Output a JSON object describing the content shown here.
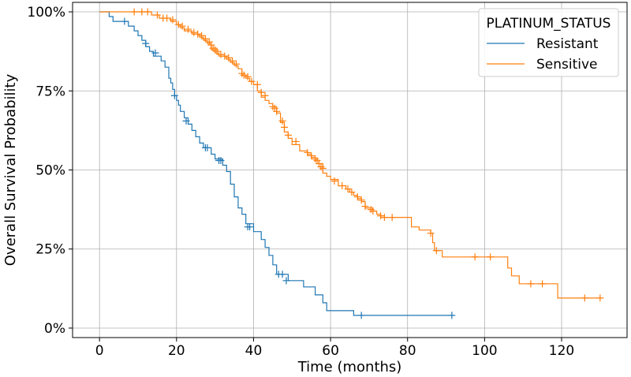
{
  "chart_data": {
    "type": "line",
    "subtype": "kaplan-meier survival curve",
    "title": "",
    "xlabel": "Time (months)",
    "ylabel": "Overall Survival Probability",
    "xlim": [
      -7,
      137
    ],
    "ylim": [
      -0.03,
      1.03
    ],
    "x_ticks": [
      0,
      20,
      40,
      60,
      80,
      100,
      120
    ],
    "x_tick_labels": [
      "0",
      "20",
      "40",
      "60",
      "80",
      "100",
      "120"
    ],
    "y_ticks": [
      0,
      0.25,
      0.5,
      0.75,
      1.0
    ],
    "y_tick_labels": [
      "0%",
      "25%",
      "50%",
      "75%",
      "100%"
    ],
    "grid": true,
    "legend": {
      "title": "PLATINUM_STATUS",
      "placement": "top-right"
    },
    "series": [
      {
        "name": "Resistant",
        "color": "#1f77b4",
        "steps": [
          [
            0,
            1.0
          ],
          [
            2.5,
            0.985
          ],
          [
            3.5,
            0.97
          ],
          [
            7.5,
            0.955
          ],
          [
            9,
            0.94
          ],
          [
            10,
            0.925
          ],
          [
            11,
            0.91
          ],
          [
            12,
            0.89
          ],
          [
            13,
            0.875
          ],
          [
            14,
            0.86
          ],
          [
            16,
            0.845
          ],
          [
            17,
            0.825
          ],
          [
            18,
            0.79
          ],
          [
            18.5,
            0.775
          ],
          [
            19,
            0.755
          ],
          [
            19.5,
            0.735
          ],
          [
            20,
            0.72
          ],
          [
            20.5,
            0.705
          ],
          [
            21,
            0.685
          ],
          [
            22,
            0.665
          ],
          [
            23,
            0.645
          ],
          [
            24,
            0.625
          ],
          [
            25,
            0.605
          ],
          [
            26,
            0.585
          ],
          [
            27,
            0.57
          ],
          [
            29,
            0.55
          ],
          [
            30,
            0.535
          ],
          [
            32,
            0.515
          ],
          [
            33,
            0.495
          ],
          [
            34,
            0.455
          ],
          [
            35,
            0.415
          ],
          [
            36,
            0.38
          ],
          [
            37,
            0.36
          ],
          [
            38,
            0.33
          ],
          [
            40,
            0.305
          ],
          [
            42,
            0.28
          ],
          [
            43,
            0.255
          ],
          [
            44,
            0.23
          ],
          [
            45,
            0.2
          ],
          [
            46,
            0.17
          ],
          [
            49,
            0.15
          ],
          [
            53,
            0.13
          ],
          [
            56,
            0.105
          ],
          [
            58,
            0.08
          ],
          [
            59,
            0.055
          ],
          [
            66,
            0.04
          ],
          [
            92,
            0.04
          ]
        ],
        "censored": [
          [
            6.5,
            0.97
          ],
          [
            12,
            0.9
          ],
          [
            14.5,
            0.87
          ],
          [
            19.5,
            0.735
          ],
          [
            22.5,
            0.655
          ],
          [
            27.5,
            0.57
          ],
          [
            28,
            0.57
          ],
          [
            31,
            0.53
          ],
          [
            31.5,
            0.53
          ],
          [
            38.5,
            0.32
          ],
          [
            39,
            0.32
          ],
          [
            46.5,
            0.17
          ],
          [
            47.5,
            0.17
          ],
          [
            48.5,
            0.15
          ],
          [
            68,
            0.04
          ],
          [
            91.5,
            0.04
          ]
        ]
      },
      {
        "name": "Sensitive",
        "color": "#ff7f0e",
        "steps": [
          [
            0,
            1.0
          ],
          [
            13.5,
            0.99
          ],
          [
            15.5,
            0.98
          ],
          [
            18.5,
            0.97
          ],
          [
            20,
            0.96
          ],
          [
            21,
            0.95
          ],
          [
            22,
            0.94
          ],
          [
            24,
            0.93
          ],
          [
            26,
            0.92
          ],
          [
            27,
            0.91
          ],
          [
            28,
            0.9
          ],
          [
            29,
            0.88
          ],
          [
            30,
            0.87
          ],
          [
            31,
            0.86
          ],
          [
            33,
            0.85
          ],
          [
            34,
            0.84
          ],
          [
            35,
            0.83
          ],
          [
            36,
            0.82
          ],
          [
            37,
            0.8
          ],
          [
            38,
            0.79
          ],
          [
            39,
            0.78
          ],
          [
            40,
            0.77
          ],
          [
            41,
            0.75
          ],
          [
            42,
            0.73
          ],
          [
            43,
            0.72
          ],
          [
            44,
            0.71
          ],
          [
            45,
            0.7
          ],
          [
            46,
            0.68
          ],
          [
            47,
            0.65
          ],
          [
            48,
            0.62
          ],
          [
            49,
            0.6
          ],
          [
            50,
            0.58
          ],
          [
            52,
            0.56
          ],
          [
            54,
            0.55
          ],
          [
            55,
            0.54
          ],
          [
            56,
            0.53
          ],
          [
            57,
            0.52
          ],
          [
            58,
            0.49
          ],
          [
            59,
            0.48
          ],
          [
            60,
            0.47
          ],
          [
            62,
            0.45
          ],
          [
            64,
            0.44
          ],
          [
            65,
            0.43
          ],
          [
            66,
            0.42
          ],
          [
            67,
            0.41
          ],
          [
            68,
            0.4
          ],
          [
            69,
            0.38
          ],
          [
            71,
            0.37
          ],
          [
            72,
            0.36
          ],
          [
            73,
            0.35
          ],
          [
            81,
            0.32
          ],
          [
            83,
            0.31
          ],
          [
            86,
            0.3
          ],
          [
            86.5,
            0.27
          ],
          [
            87,
            0.245
          ],
          [
            89,
            0.225
          ],
          [
            106,
            0.19
          ],
          [
            107,
            0.165
          ],
          [
            109,
            0.14
          ],
          [
            119,
            0.095
          ],
          [
            130,
            0.095
          ]
        ],
        "censored": [
          [
            9,
            1.0
          ],
          [
            11,
            1.0
          ],
          [
            12.5,
            1.0
          ],
          [
            15,
            0.99
          ],
          [
            16.5,
            0.98
          ],
          [
            17.5,
            0.98
          ],
          [
            19,
            0.975
          ],
          [
            20.5,
            0.96
          ],
          [
            21.5,
            0.955
          ],
          [
            23,
            0.945
          ],
          [
            24.5,
            0.935
          ],
          [
            25.5,
            0.93
          ],
          [
            26.5,
            0.925
          ],
          [
            27.5,
            0.915
          ],
          [
            28.5,
            0.905
          ],
          [
            29,
            0.895
          ],
          [
            29.5,
            0.885
          ],
          [
            30,
            0.88
          ],
          [
            30.5,
            0.875
          ],
          [
            31.5,
            0.865
          ],
          [
            32.5,
            0.86
          ],
          [
            33.5,
            0.855
          ],
          [
            34.5,
            0.845
          ],
          [
            35.5,
            0.835
          ],
          [
            37,
            0.805
          ],
          [
            37.5,
            0.8
          ],
          [
            38.5,
            0.795
          ],
          [
            39.5,
            0.78
          ],
          [
            41,
            0.77
          ],
          [
            42,
            0.745
          ],
          [
            43,
            0.735
          ],
          [
            45,
            0.7
          ],
          [
            45.5,
            0.695
          ],
          [
            46,
            0.685
          ],
          [
            47.5,
            0.655
          ],
          [
            48,
            0.635
          ],
          [
            49,
            0.61
          ],
          [
            51,
            0.59
          ],
          [
            54,
            0.555
          ],
          [
            55,
            0.545
          ],
          [
            56,
            0.535
          ],
          [
            56.5,
            0.53
          ],
          [
            57,
            0.52
          ],
          [
            57.5,
            0.51
          ],
          [
            58,
            0.505
          ],
          [
            61,
            0.465
          ],
          [
            63,
            0.45
          ],
          [
            64.5,
            0.44
          ],
          [
            65.5,
            0.43
          ],
          [
            67,
            0.415
          ],
          [
            68,
            0.405
          ],
          [
            69,
            0.385
          ],
          [
            70.5,
            0.375
          ],
          [
            71,
            0.37
          ],
          [
            73,
            0.355
          ],
          [
            74,
            0.35
          ],
          [
            76,
            0.35
          ],
          [
            86,
            0.3
          ],
          [
            87.5,
            0.245
          ],
          [
            97.5,
            0.225
          ],
          [
            101.5,
            0.225
          ],
          [
            112,
            0.14
          ],
          [
            115,
            0.14
          ],
          [
            126,
            0.095
          ],
          [
            130,
            0.095
          ]
        ]
      }
    ]
  }
}
